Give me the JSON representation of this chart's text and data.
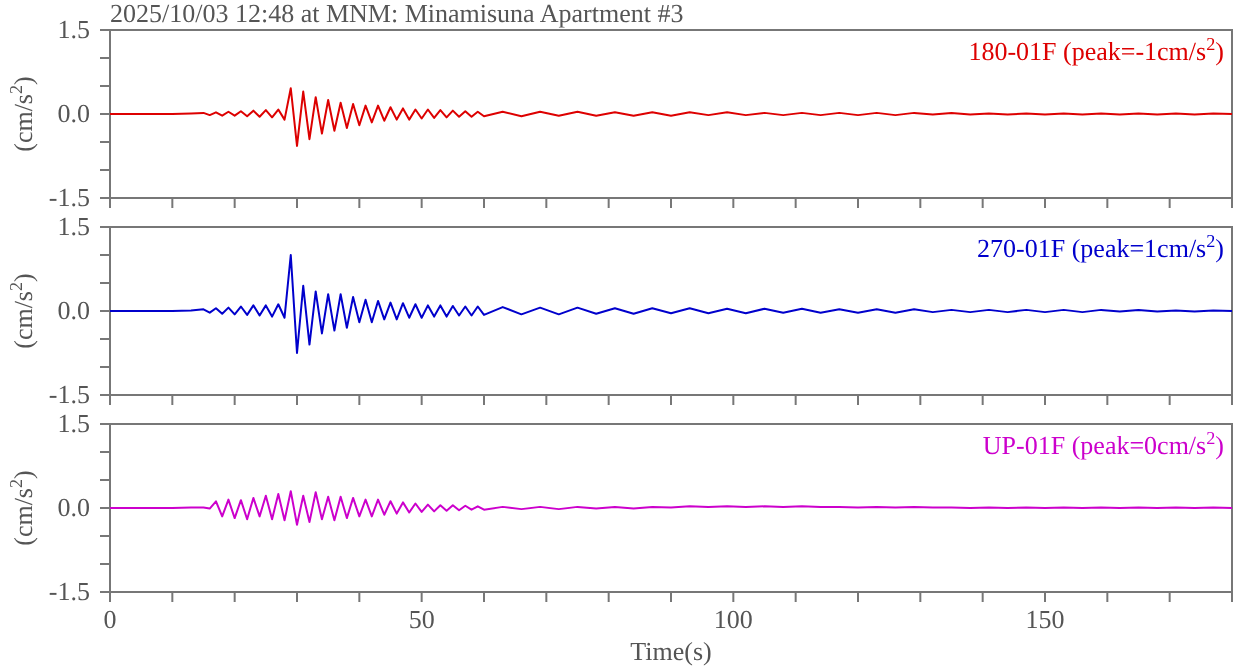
{
  "chart_data": [
    {
      "type": "line",
      "title": "2025/10/03 12:48 at MNM: Minamisuna Apartment #3",
      "ylabel": "(cm/s$^{2}$)",
      "tick_labels": "y",
      "x": [
        0,
        5,
        10,
        13,
        15,
        16,
        17,
        18,
        19,
        20,
        21,
        22,
        23,
        24,
        25,
        26,
        27,
        28,
        29,
        30,
        31,
        32,
        33,
        34,
        35,
        36,
        37,
        38,
        39,
        40,
        41,
        42,
        43,
        44,
        45,
        46,
        47,
        48,
        49,
        50,
        51,
        52,
        53,
        54,
        55,
        56,
        57,
        58,
        59,
        60,
        63,
        66,
        69,
        72,
        75,
        78,
        81,
        84,
        87,
        90,
        93,
        96,
        99,
        102,
        105,
        108,
        111,
        114,
        117,
        120,
        123,
        126,
        129,
        132,
        135,
        138,
        141,
        144,
        147,
        150,
        153,
        156,
        159,
        162,
        165,
        168,
        171,
        174,
        177,
        180
      ],
      "xlim": [
        0,
        180
      ],
      "ylim": [
        -1.5,
        1.5
      ],
      "xticks": [
        0,
        {
          "value": 10,
          "label": null
        },
        {
          "value": 20,
          "label": null
        },
        {
          "value": 30,
          "label": null
        },
        {
          "value": 40,
          "label": null
        },
        50,
        {
          "value": 60,
          "label": null
        },
        {
          "value": 70,
          "label": null
        },
        {
          "value": 80,
          "label": null
        },
        {
          "value": 90,
          "label": null
        },
        100,
        {
          "value": 110,
          "label": null
        },
        {
          "value": 120,
          "label": null
        },
        {
          "value": 130,
          "label": null
        },
        {
          "value": 140,
          "label": null
        },
        150,
        {
          "value": 160,
          "label": null
        },
        {
          "value": 170,
          "label": null
        },
        {
          "value": 180,
          "label": null
        }
      ],
      "yticks": [
        {
          "value": -1.5,
          "label": "-1.5"
        },
        {
          "value": -1,
          "label": null
        },
        {
          "value": -0.5,
          "label": null
        },
        {
          "value": 0,
          "label": "0.0"
        },
        {
          "value": 0.5,
          "label": null
        },
        {
          "value": 1,
          "label": null
        },
        {
          "value": 1.5,
          "label": "1.5"
        }
      ],
      "series": [
        {
          "name": "180-01F (peak=-1cm/s$^{2}$)",
          "color": "#dd0000",
          "values": [
            0,
            0,
            0,
            0.01,
            0.02,
            -0.02,
            0.03,
            -0.03,
            0.04,
            -0.03,
            0.05,
            -0.04,
            0.06,
            -0.05,
            0.07,
            -0.06,
            0.08,
            -0.1,
            0.46,
            -0.57,
            0.4,
            -0.45,
            0.3,
            -0.35,
            0.25,
            -0.3,
            0.2,
            -0.25,
            0.18,
            -0.2,
            0.15,
            -0.15,
            0.15,
            -0.12,
            0.12,
            -0.1,
            0.1,
            -0.1,
            0.08,
            -0.08,
            0.08,
            -0.07,
            0.07,
            -0.06,
            0.06,
            -0.05,
            0.05,
            -0.05,
            0.04,
            -0.04,
            0.04,
            -0.04,
            0.04,
            -0.03,
            0.04,
            -0.03,
            0.03,
            -0.03,
            0.03,
            -0.03,
            0.03,
            -0.02,
            0.03,
            -0.02,
            0.02,
            -0.02,
            0.02,
            -0.02,
            0.02,
            -0.02,
            0.02,
            -0.02,
            0.02,
            -0.01,
            0.02,
            -0.01,
            0.01,
            -0.01,
            0.01,
            -0.01,
            0.01,
            -0.01,
            0.01,
            -0.01,
            0.01,
            -0.01,
            0.01,
            -0.01,
            0.01,
            0
          ]
        }
      ]
    },
    {
      "type": "line",
      "ylabel": "(cm/s$^{2}$)",
      "tick_labels": "y",
      "x": [
        0,
        5,
        10,
        13,
        15,
        16,
        17,
        18,
        19,
        20,
        21,
        22,
        23,
        24,
        25,
        26,
        27,
        28,
        29,
        30,
        31,
        32,
        33,
        34,
        35,
        36,
        37,
        38,
        39,
        40,
        41,
        42,
        43,
        44,
        45,
        46,
        47,
        48,
        49,
        50,
        51,
        52,
        53,
        54,
        55,
        56,
        57,
        58,
        59,
        60,
        63,
        66,
        69,
        72,
        75,
        78,
        81,
        84,
        87,
        90,
        93,
        96,
        99,
        102,
        105,
        108,
        111,
        114,
        117,
        120,
        123,
        126,
        129,
        132,
        135,
        138,
        141,
        144,
        147,
        150,
        153,
        156,
        159,
        162,
        165,
        168,
        171,
        174,
        177,
        180
      ],
      "xlim": [
        0,
        180
      ],
      "ylim": [
        -1.5,
        1.5
      ],
      "xticks": [
        0,
        {
          "value": 10,
          "label": null
        },
        {
          "value": 20,
          "label": null
        },
        {
          "value": 30,
          "label": null
        },
        {
          "value": 40,
          "label": null
        },
        50,
        {
          "value": 60,
          "label": null
        },
        {
          "value": 70,
          "label": null
        },
        {
          "value": 80,
          "label": null
        },
        {
          "value": 90,
          "label": null
        },
        100,
        {
          "value": 110,
          "label": null
        },
        {
          "value": 120,
          "label": null
        },
        {
          "value": 130,
          "label": null
        },
        {
          "value": 140,
          "label": null
        },
        150,
        {
          "value": 160,
          "label": null
        },
        {
          "value": 170,
          "label": null
        },
        {
          "value": 180,
          "label": null
        }
      ],
      "yticks": [
        {
          "value": -1.5,
          "label": "-1.5"
        },
        {
          "value": -1,
          "label": null
        },
        {
          "value": -0.5,
          "label": null
        },
        {
          "value": 0,
          "label": "0.0"
        },
        {
          "value": 0.5,
          "label": null
        },
        {
          "value": 1,
          "label": null
        },
        {
          "value": 1.5,
          "label": "1.5"
        }
      ],
      "series": [
        {
          "name": "270-01F (peak=1cm/s$^{2}$)",
          "color": "#0000cc",
          "values": [
            0,
            0,
            0,
            0.01,
            0.03,
            -0.03,
            0.05,
            -0.05,
            0.06,
            -0.06,
            0.08,
            -0.07,
            0.1,
            -0.08,
            0.1,
            -0.1,
            0.12,
            -0.12,
            1.0,
            -0.75,
            0.45,
            -0.6,
            0.35,
            -0.4,
            0.3,
            -0.35,
            0.3,
            -0.3,
            0.25,
            -0.2,
            0.2,
            -0.2,
            0.18,
            -0.15,
            0.15,
            -0.15,
            0.14,
            -0.12,
            0.12,
            -0.12,
            0.1,
            -0.1,
            0.1,
            -0.1,
            0.09,
            -0.08,
            0.08,
            -0.08,
            0.08,
            -0.07,
            0.07,
            -0.06,
            0.06,
            -0.06,
            0.06,
            -0.05,
            0.05,
            -0.05,
            0.05,
            -0.04,
            0.05,
            -0.04,
            0.04,
            -0.04,
            0.04,
            -0.03,
            0.04,
            -0.03,
            0.03,
            -0.03,
            0.03,
            -0.03,
            0.03,
            -0.02,
            0.02,
            -0.02,
            0.02,
            -0.02,
            0.02,
            -0.02,
            0.02,
            -0.02,
            0.02,
            -0.01,
            0.02,
            -0.01,
            0.01,
            -0.01,
            0.01,
            0
          ]
        }
      ]
    },
    {
      "type": "line",
      "ylabel": "(cm/s$^{2}$)",
      "xlabel": "Time(s)",
      "x": [
        0,
        5,
        10,
        13,
        15,
        16,
        17,
        18,
        19,
        20,
        21,
        22,
        23,
        24,
        25,
        26,
        27,
        28,
        29,
        30,
        31,
        32,
        33,
        34,
        35,
        36,
        37,
        38,
        39,
        40,
        41,
        42,
        43,
        44,
        45,
        46,
        47,
        48,
        49,
        50,
        51,
        52,
        53,
        54,
        55,
        56,
        57,
        58,
        59,
        60,
        63,
        66,
        69,
        72,
        75,
        78,
        81,
        84,
        87,
        90,
        93,
        96,
        99,
        102,
        105,
        108,
        111,
        114,
        117,
        120,
        123,
        126,
        129,
        132,
        135,
        138,
        141,
        144,
        147,
        150,
        153,
        156,
        159,
        162,
        165,
        168,
        171,
        174,
        177,
        180
      ],
      "xlim": [
        0,
        180
      ],
      "ylim": [
        -1.5,
        1.5
      ],
      "xticks": [
        0,
        {
          "value": 10,
          "label": null
        },
        {
          "value": 20,
          "label": null
        },
        {
          "value": 30,
          "label": null
        },
        {
          "value": 40,
          "label": null
        },
        50,
        {
          "value": 60,
          "label": null
        },
        {
          "value": 70,
          "label": null
        },
        {
          "value": 80,
          "label": null
        },
        {
          "value": 90,
          "label": null
        },
        100,
        {
          "value": 110,
          "label": null
        },
        {
          "value": 120,
          "label": null
        },
        {
          "value": 130,
          "label": null
        },
        {
          "value": 140,
          "label": null
        },
        150,
        {
          "value": 160,
          "label": null
        },
        {
          "value": 170,
          "label": null
        },
        {
          "value": 180,
          "label": null
        }
      ],
      "yticks": [
        {
          "value": -1.5,
          "label": "-1.5"
        },
        {
          "value": -1,
          "label": null
        },
        {
          "value": -0.5,
          "label": null
        },
        {
          "value": 0,
          "label": "0.0"
        },
        {
          "value": 0.5,
          "label": null
        },
        {
          "value": 1,
          "label": null
        },
        {
          "value": 1.5,
          "label": "1.5"
        }
      ],
      "series": [
        {
          "name": "UP-01F (peak=0cm/s$^{2}$)",
          "color": "#cc00cc",
          "values": [
            0,
            0,
            0,
            0.01,
            0.01,
            -0.01,
            0.12,
            -0.15,
            0.15,
            -0.18,
            0.14,
            -0.2,
            0.18,
            -0.15,
            0.22,
            -0.2,
            0.25,
            -0.22,
            0.3,
            -0.3,
            0.22,
            -0.25,
            0.28,
            -0.2,
            0.2,
            -0.22,
            0.2,
            -0.18,
            0.18,
            -0.15,
            0.15,
            -0.15,
            0.15,
            -0.12,
            0.12,
            -0.1,
            0.1,
            -0.08,
            0.08,
            -0.07,
            0.06,
            -0.06,
            0.05,
            -0.05,
            0.05,
            -0.04,
            0.04,
            -0.03,
            0.03,
            -0.03,
            0.02,
            -0.02,
            0.02,
            -0.02,
            0.02,
            -0.01,
            0.02,
            -0.01,
            0.02,
            0.01,
            0.03,
            0.02,
            0.03,
            0.02,
            0.03,
            0.02,
            0.03,
            0.02,
            0.02,
            0.01,
            0.02,
            0.01,
            0.02,
            0.01,
            0.01,
            0,
            0.01,
            0,
            0.01,
            0,
            0.01,
            0,
            0.01,
            0,
            0.01,
            0,
            0.01,
            0,
            0.01,
            0
          ]
        }
      ]
    }
  ]
}
